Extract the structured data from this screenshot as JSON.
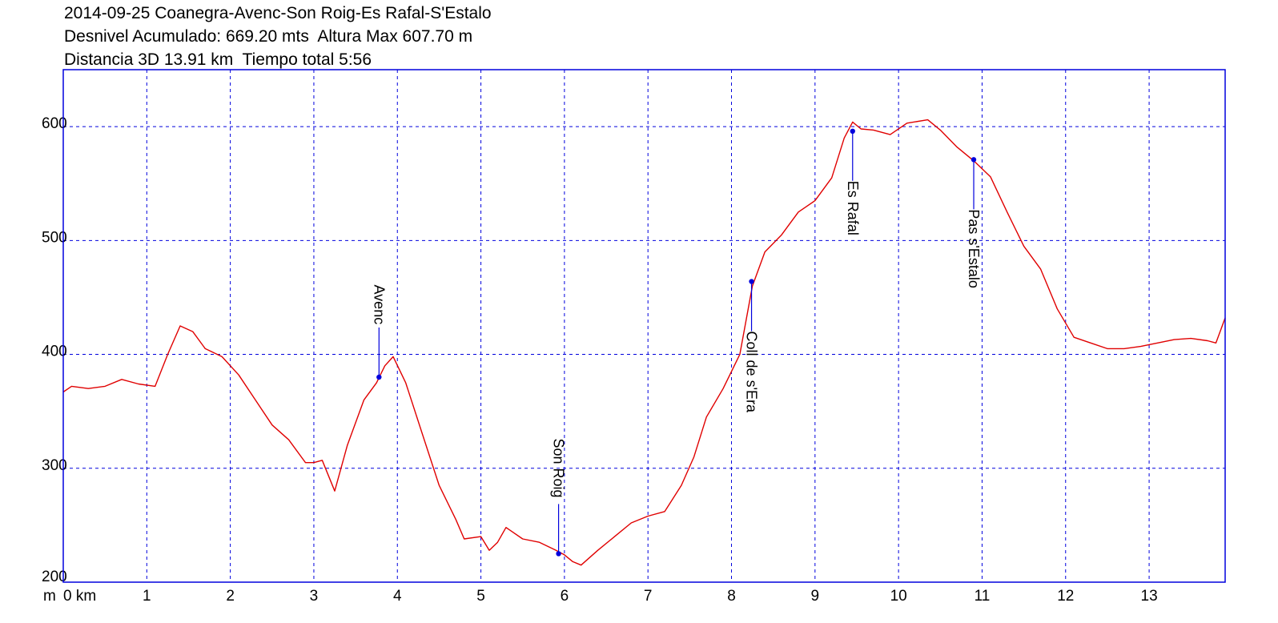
{
  "chart_data": {
    "type": "line",
    "title_lines": [
      "2014-09-25 Coanegra-Avenc-Son Roig-Es Rafal-S'Estalo",
      "Desnivel Acumulado: 669.20 mts  Altura Max 607.70 m",
      "Distancia 3D 13.91 km  Tiempo total 5:56"
    ],
    "x_unit_label": "m",
    "x_tick_labels": [
      "0 km",
      "1",
      "2",
      "3",
      "4",
      "5",
      "6",
      "7",
      "8",
      "9",
      "10",
      "11",
      "12",
      "13"
    ],
    "x_ticks": [
      0,
      1,
      2,
      3,
      4,
      5,
      6,
      7,
      8,
      9,
      10,
      11,
      12,
      13
    ],
    "y_tick_labels": [
      "200",
      "300",
      "400",
      "500",
      "600"
    ],
    "y_ticks": [
      200,
      300,
      400,
      500,
      600
    ],
    "xlim": [
      0,
      13.91
    ],
    "ylim": [
      200,
      650
    ],
    "grid": true,
    "colors": {
      "line": "#e00000",
      "frame": "#0000dd",
      "grid": "#0000dd",
      "marker": "#0000dd"
    },
    "series": [
      {
        "x": [
          0,
          0.1,
          0.3,
          0.5,
          0.7,
          0.9,
          1.1,
          1.25,
          1.4,
          1.55,
          1.7,
          1.9,
          2.1,
          2.3,
          2.5,
          2.7,
          2.9,
          3.0,
          3.1,
          3.25,
          3.4,
          3.6,
          3.75,
          3.85,
          3.95,
          4.1,
          4.3,
          4.5,
          4.7,
          4.8,
          5.0,
          5.1,
          5.2,
          5.3,
          5.5,
          5.7,
          5.9,
          6.0,
          6.1,
          6.2,
          6.4,
          6.6,
          6.8,
          7.0,
          7.2,
          7.4,
          7.55,
          7.7,
          7.9,
          8.1,
          8.25,
          8.4,
          8.6,
          8.8,
          9.0,
          9.2,
          9.35,
          9.45,
          9.55,
          9.7,
          9.9,
          10.1,
          10.35,
          10.5,
          10.7,
          10.9,
          11.1,
          11.3,
          11.5,
          11.7,
          11.9,
          12.1,
          12.3,
          12.5,
          12.7,
          12.9,
          13.1,
          13.3,
          13.5,
          13.7,
          13.8,
          13.91
        ],
        "y": [
          367,
          372,
          370,
          372,
          378,
          374,
          372,
          400,
          425,
          420,
          405,
          398,
          382,
          360,
          338,
          325,
          305,
          305,
          307,
          280,
          320,
          360,
          375,
          390,
          398,
          375,
          330,
          285,
          255,
          238,
          240,
          228,
          235,
          248,
          238,
          235,
          228,
          224,
          218,
          215,
          228,
          240,
          252,
          258,
          262,
          285,
          310,
          345,
          370,
          400,
          460,
          490,
          505,
          525,
          535,
          555,
          590,
          604,
          598,
          597,
          593,
          603,
          606,
          597,
          582,
          570,
          556,
          525,
          495,
          475,
          440,
          415,
          410,
          405,
          405,
          407,
          410,
          413,
          414,
          412,
          410,
          432
        ]
      }
    ],
    "waypoints": [
      {
        "label": "Avenc",
        "x": 3.78,
        "y": 380
      },
      {
        "label": "Son Roig",
        "x": 5.93,
        "y": 225
      },
      {
        "label": "Coll de s'Era",
        "x": 8.24,
        "y": 464
      },
      {
        "label": "Es Rafal",
        "x": 9.45,
        "y": 596
      },
      {
        "label": "Pas s'Estalo",
        "x": 10.9,
        "y": 571
      }
    ]
  }
}
